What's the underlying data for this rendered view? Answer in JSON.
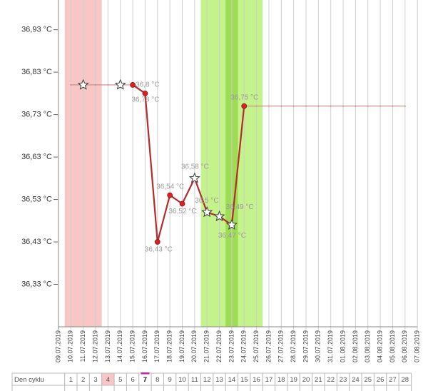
{
  "chart_data": {
    "type": "line",
    "categories": [
      "09.07.2019",
      "10.07.2019",
      "11.07.2019",
      "12.07.2019",
      "13.07.2019",
      "14.07.2019",
      "15.07.2019",
      "16.07.2019",
      "17.07.2019",
      "18.07.2019",
      "19.07.2019",
      "20.07.2019",
      "21.07.2019",
      "22.07.2019",
      "23.07.2019",
      "24.07.2019",
      "25.07.2019",
      "26.07.2019",
      "27.07.2019",
      "28.07.2019",
      "29.07.2019",
      "30.07.2019",
      "31.07.2019",
      "01.08.2019",
      "02.08.2019",
      "03.08.2019",
      "04.08.2019",
      "05.08.2019",
      "06.08.2019",
      "07.08.2019"
    ],
    "ylim": [
      36.23,
      37.0
    ],
    "yticks": [
      {
        "value": 36.33,
        "label": "36,33 °C"
      },
      {
        "value": 36.43,
        "label": "36,43 °C"
      },
      {
        "value": 36.53,
        "label": "36,53 °C"
      },
      {
        "value": 36.63,
        "label": "36,63 °C"
      },
      {
        "value": 36.73,
        "label": "36,73 °C"
      },
      {
        "value": 36.83,
        "label": "36,83 °C"
      },
      {
        "value": 36.93,
        "label": "36,93 °C"
      }
    ],
    "series": [
      {
        "color": "#c98a86",
        "values": [
          null,
          36.8,
          36.8,
          36.8,
          36.8,
          36.8,
          36.8,
          null,
          null,
          null,
          null,
          null,
          null,
          null,
          null,
          36.75,
          36.75,
          36.75,
          36.75,
          36.75,
          36.75,
          36.75,
          36.75,
          36.75,
          36.75,
          36.75,
          36.75,
          36.75,
          36.75,
          null
        ],
        "markers": [
          null,
          null,
          "star",
          null,
          null,
          "star",
          null,
          null,
          null,
          null,
          null,
          null,
          null,
          null,
          null,
          null,
          null,
          null,
          null,
          null,
          null,
          null,
          null,
          null,
          null,
          null,
          null,
          null,
          null,
          null
        ]
      },
      {
        "color": "#b52a2a",
        "values": [
          null,
          null,
          null,
          null,
          null,
          null,
          36.8,
          36.78,
          36.43,
          36.54,
          36.52,
          36.58,
          36.5,
          36.49,
          36.47,
          36.75,
          null,
          null,
          null,
          null,
          null,
          null,
          null,
          null,
          null,
          null,
          null,
          null,
          null,
          null
        ],
        "value_labels": [
          null,
          null,
          null,
          null,
          null,
          null,
          "36,8 °C",
          "36,78 °C",
          "36,43 °C",
          "36,54 °C",
          "36,52 °C",
          "36,58 °C",
          "36,5 °C",
          "36,49 °C",
          "36,47 °C",
          "36,75 °C",
          null,
          null,
          null,
          null,
          null,
          null,
          null,
          null,
          null,
          null,
          null,
          null,
          null,
          null
        ],
        "markers": [
          null,
          null,
          null,
          null,
          null,
          null,
          "dot",
          "dot",
          "dot",
          "dot",
          "dot",
          "star",
          "star",
          "star",
          "star",
          "dot",
          null,
          null,
          null,
          null,
          null,
          null,
          null,
          null,
          null,
          null,
          null,
          null,
          null,
          null
        ]
      }
    ],
    "cycle_table": {
      "label": "Den cyklu",
      "days": [
        1,
        2,
        3,
        4,
        5,
        6,
        7,
        8,
        9,
        10,
        11,
        12,
        13,
        14,
        15,
        16,
        17,
        18,
        19,
        20,
        21,
        22,
        23,
        24,
        25,
        26,
        27,
        28
      ]
    }
  }
}
